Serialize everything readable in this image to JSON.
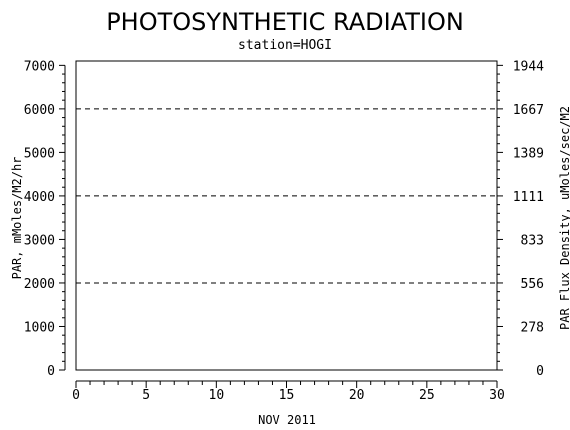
{
  "chart_data": {
    "type": "line",
    "title": "PHOTOSYNTHETIC RADIATION",
    "subtitle": "station=HOGI",
    "xlabel": "NOV 2011",
    "ylabel": "PAR, mMoles/M2/hr",
    "y2label": "PAR Flux Density, uMoles/sec/M2",
    "xlim": [
      0,
      30
    ],
    "ylim": [
      0,
      7100
    ],
    "x_ticks": [
      0,
      5,
      10,
      15,
      20,
      25,
      30
    ],
    "y_ticks": [
      0,
      1000,
      2000,
      3000,
      4000,
      5000,
      6000,
      7000
    ],
    "y2_ticks": [
      0,
      278,
      556,
      833,
      1111,
      1389,
      1667,
      1944
    ],
    "gridlines_y": [
      2000,
      4000,
      6000
    ],
    "grid_style": "dashed",
    "series": [],
    "colors": {
      "axis": "#000000",
      "background": "#ffffff",
      "grid": "#000000"
    }
  }
}
